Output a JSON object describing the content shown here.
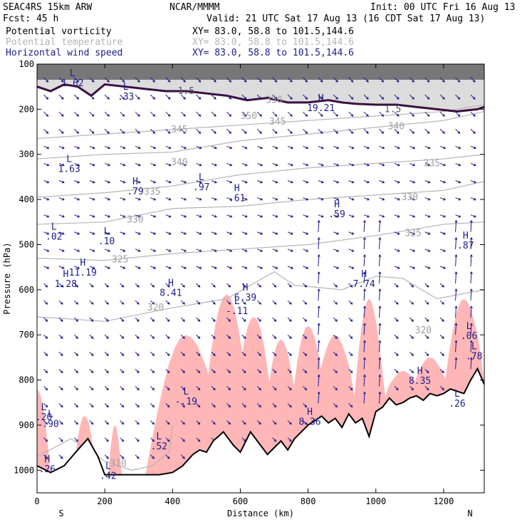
{
  "header": {
    "model": "SEAC4RS 15km ARW",
    "source": "NCAR/MMMM",
    "init": "Init: 00 UTC Fri 16 Aug 13",
    "forecast": "Fcst:    45 h",
    "valid": "Valid: 21 UTC Sat 17 Aug 13 (16 CDT Sat 17 Aug 13)"
  },
  "legend": [
    {
      "label": "Potential vorticity",
      "xy": "XY=  83.0, 58.8 to 101.5,144.6",
      "color": "#1c1c8c",
      "label_color": "#000000"
    },
    {
      "label": "Potential temperature",
      "xy": "XY=  83.0, 58.8 to 101.5,144.6",
      "color": "#b4b4b4",
      "label_color": "#b4b4b4"
    },
    {
      "label": "Horizontal wind speed",
      "xy": "XY=  83.0, 58.8 to 101.5,144.6",
      "color": "#1c1c8c",
      "label_color": "#1c1c8c"
    }
  ],
  "chart_data": {
    "type": "cross-section",
    "xlabel": "Distance (km)",
    "ylabel": "Pressure (hPa)",
    "xlim": [
      0,
      1320
    ],
    "ylim": [
      1050,
      100
    ],
    "x_ticks": [
      0,
      200,
      400,
      600,
      800,
      1000,
      1200
    ],
    "y_ticks": [
      100,
      200,
      300,
      400,
      500,
      600,
      700,
      800,
      900,
      1000
    ],
    "x_end_labels": {
      "left": "S",
      "right": "N"
    },
    "colors": {
      "terrain": "#000000",
      "wind_arrows": "#1c1c8c",
      "theta": "#b4b4b4",
      "pv_shading": "#ffb6b6",
      "tropopause": "#3a1040",
      "stratosphere_shading": "#555555"
    },
    "terrain": {
      "x": [
        0,
        40,
        80,
        120,
        150,
        180,
        200,
        240,
        300,
        360,
        400,
        430,
        460,
        480,
        500,
        520,
        550,
        580,
        600,
        630,
        650,
        680,
        700,
        720,
        740,
        760,
        780,
        800,
        820,
        840,
        860,
        880,
        900,
        920,
        940,
        960,
        980,
        1000,
        1020,
        1040,
        1060,
        1080,
        1100,
        1120,
        1140,
        1160,
        1180,
        1200,
        1220,
        1240,
        1260,
        1280,
        1300,
        1320
      ],
      "p": [
        990,
        1005,
        990,
        955,
        930,
        970,
        1010,
        1010,
        1010,
        1010,
        1005,
        990,
        965,
        955,
        960,
        935,
        915,
        945,
        960,
        915,
        935,
        965,
        950,
        935,
        955,
        930,
        915,
        900,
        890,
        880,
        895,
        885,
        905,
        875,
        895,
        885,
        925,
        870,
        860,
        840,
        855,
        850,
        840,
        835,
        845,
        830,
        835,
        830,
        820,
        825,
        830,
        800,
        775,
        810
      ]
    },
    "theta_contours": [
      {
        "label": "310",
        "x": [
          0,
          100,
          200,
          280,
          340,
          390,
          400
        ],
        "p": [
          970,
          930,
          980,
          1000,
          990,
          960,
          900
        ]
      },
      {
        "label": "320",
        "x": [
          0,
          200,
          400,
          560,
          700,
          760,
          900,
          1000,
          1080,
          1180,
          1320
        ],
        "p": [
          660,
          670,
          640,
          620,
          560,
          590,
          600,
          570,
          575,
          620,
          600
        ]
      },
      {
        "label": "325",
        "x": [
          0,
          200,
          400,
          600,
          800,
          1000,
          1200,
          1320
        ],
        "p": [
          530,
          535,
          520,
          510,
          500,
          480,
          455,
          450
        ]
      },
      {
        "label": "330",
        "x": [
          0,
          200,
          400,
          600,
          800,
          1000,
          1200,
          1320
        ],
        "p": [
          455,
          450,
          420,
          415,
          400,
          390,
          380,
          360
        ]
      },
      {
        "label": "335",
        "x": [
          0,
          200,
          400,
          600,
          800,
          1000,
          1200,
          1320
        ],
        "p": [
          395,
          385,
          370,
          345,
          330,
          320,
          310,
          300
        ]
      },
      {
        "label": "340",
        "x": [
          0,
          200,
          400,
          600,
          800,
          1000,
          1200,
          1320
        ],
        "p": [
          310,
          300,
          295,
          270,
          255,
          240,
          225,
          205
        ]
      },
      {
        "label": "345",
        "x": [
          0,
          200,
          400,
          600,
          800,
          1000,
          1200,
          1320
        ],
        "p": [
          265,
          255,
          245,
          235,
          225,
          215,
          205,
          190
        ]
      }
    ],
    "tropopause_pv": {
      "label": "1.5",
      "x": [
        0,
        40,
        80,
        120,
        160,
        200,
        260,
        320,
        380,
        440,
        500,
        560,
        620,
        680,
        740,
        800,
        860,
        900,
        940,
        1000,
        1060,
        1120,
        1180,
        1240,
        1300,
        1320
      ],
      "p": [
        150,
        160,
        145,
        150,
        170,
        145,
        150,
        155,
        160,
        160,
        165,
        170,
        180,
        175,
        185,
        185,
        180,
        185,
        188,
        190,
        190,
        195,
        200,
        205,
        200,
        195
      ]
    },
    "highs_lows": [
      {
        "kind": "L",
        "value": "1.62",
        "x": 105,
        "p": 130
      },
      {
        "kind": "L",
        "value": ".33",
        "x": 262,
        "p": 160
      },
      {
        "kind": "H",
        "value": "19.21",
        "x": 838,
        "p": 185
      },
      {
        "kind": "L",
        "value": "1.63",
        "x": 95,
        "p": 320
      },
      {
        "kind": "H",
        "value": ".79",
        "x": 290,
        "p": 370
      },
      {
        "kind": "L",
        "value": ".97",
        "x": 485,
        "p": 360
      },
      {
        "kind": "H",
        "value": ".61",
        "x": 590,
        "p": 385
      },
      {
        "kind": "H",
        "value": ".59",
        "x": 885,
        "p": 420
      },
      {
        "kind": "L",
        "value": ".02",
        "x": 50,
        "p": 470
      },
      {
        "kind": "L",
        "value": ".10",
        "x": 205,
        "p": 480
      },
      {
        "kind": "H",
        "value": ".87",
        "x": 1265,
        "p": 490
      },
      {
        "kind": "H",
        "value": "11.19",
        "x": 135,
        "p": 550
      },
      {
        "kind": "H",
        "value": "1.28",
        "x": 85,
        "p": 575
      },
      {
        "kind": "H",
        "value": "8.41",
        "x": 395,
        "p": 595
      },
      {
        "kind": "H",
        "value": "6.39",
        "x": 615,
        "p": 605
      },
      {
        "kind": "L",
        "value": "-.11",
        "x": 590,
        "p": 635
      },
      {
        "kind": "H",
        "value": "7.74",
        "x": 965,
        "p": 575
      },
      {
        "kind": "L",
        "value": ".06",
        "x": 1275,
        "p": 690
      },
      {
        "kind": "L",
        "value": ".78",
        "x": 1290,
        "p": 735
      },
      {
        "kind": "H",
        "value": "8.35",
        "x": 1130,
        "p": 790
      },
      {
        "kind": "L",
        "value": "-.19",
        "x": 440,
        "p": 835
      },
      {
        "kind": "L",
        "value": ".26",
        "x": 1240,
        "p": 840
      },
      {
        "kind": "H",
        "value": "8.36",
        "x": 805,
        "p": 880
      },
      {
        "kind": "L",
        "value": ".52",
        "x": 360,
        "p": 935
      },
      {
        "kind": "L",
        "value": ".20",
        "x": 20,
        "p": 870
      },
      {
        "kind": "L",
        "value": ".90",
        "x": 40,
        "p": 885
      },
      {
        "kind": "L",
        "value": ".42",
        "x": 210,
        "p": 1000
      },
      {
        "kind": "H",
        "value": ".26",
        "x": 30,
        "p": 985
      }
    ],
    "theta_label_positions": [
      {
        "label": "345",
        "x": 420,
        "p": 245
      },
      {
        "label": "340",
        "x": 420,
        "p": 318
      },
      {
        "label": "335",
        "x": 340,
        "p": 383
      },
      {
        "label": "330",
        "x": 290,
        "p": 445
      },
      {
        "label": "325",
        "x": 245,
        "p": 533
      },
      {
        "label": "320",
        "x": 350,
        "p": 640
      },
      {
        "label": "345",
        "x": 710,
        "p": 228
      },
      {
        "label": "340",
        "x": 1060,
        "p": 238
      },
      {
        "label": "335",
        "x": 1165,
        "p": 320
      },
      {
        "label": "330",
        "x": 1100,
        "p": 395
      },
      {
        "label": "325",
        "x": 1110,
        "p": 475
      },
      {
        "label": "320",
        "x": 1140,
        "p": 690
      },
      {
        "label": "350",
        "x": 700,
        "p": 180
      },
      {
        "label": "350",
        "x": 625,
        "p": 215
      },
      {
        "label": "310",
        "x": 240,
        "p": 985
      }
    ]
  }
}
